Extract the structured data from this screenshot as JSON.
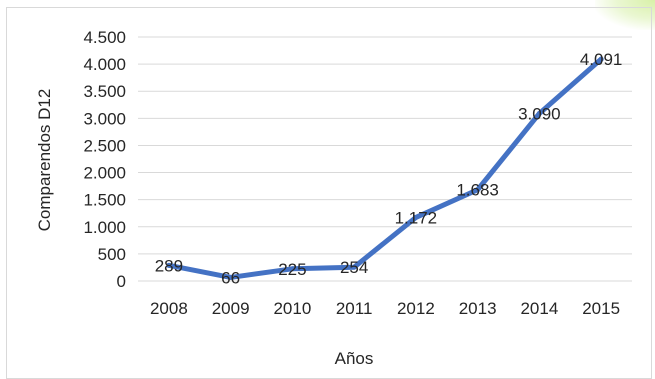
{
  "chart_data": {
    "type": "line",
    "x": [
      "2008",
      "2009",
      "2010",
      "2011",
      "2012",
      "2013",
      "2014",
      "2015"
    ],
    "series": [
      {
        "values": [
          289,
          66,
          225,
          254,
          1172,
          1683,
          3090,
          4091
        ],
        "labels": [
          "289",
          "66",
          "225",
          "254",
          "1.172",
          "1.683",
          "3.090",
          "4.091"
        ],
        "color": "#4472c4"
      }
    ],
    "xlabel": "Años",
    "ylabel": "Comparendos D12",
    "ylim": [
      0,
      4500
    ],
    "yticks": [
      0,
      500,
      1000,
      1500,
      2000,
      2500,
      3000,
      3500,
      4000,
      4500
    ],
    "ytick_labels": [
      "0",
      "500",
      "1.000",
      "1.500",
      "2.000",
      "2.500",
      "3.000",
      "3.500",
      "4.000",
      "4.500"
    ],
    "grid": true,
    "legend": "none"
  },
  "colors": {
    "line": "#4472c4",
    "grid": "#d9d9d9",
    "text": "#262626",
    "accent_glow": "#d8f0a8"
  }
}
